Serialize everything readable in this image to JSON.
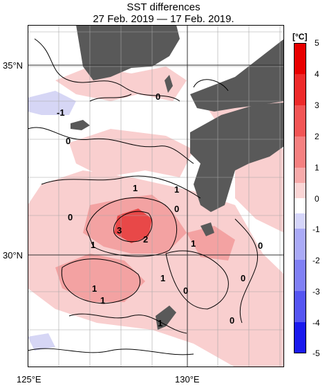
{
  "title": {
    "line1": "SST differences",
    "line2": "27 Feb. 2019 — 17 Feb. 2019."
  },
  "axes": {
    "lat_labels": [
      "35°N",
      "30°N"
    ],
    "lon_labels": [
      "125°E",
      "130°E"
    ]
  },
  "colorbar": {
    "unit": "[°C]",
    "ticks": [
      "5",
      "4",
      "3",
      "2",
      "1",
      "0",
      "-1",
      "-2",
      "-3",
      "-4",
      "-5"
    ],
    "colors": {
      "warm": "#ee2a2a",
      "cool": "#3a3aee",
      "neutral": "#ffffff",
      "land": "#595959"
    }
  },
  "contour_labels": [
    {
      "text": "-1"
    },
    {
      "text": "0"
    },
    {
      "text": "0"
    },
    {
      "text": "1"
    },
    {
      "text": "1"
    },
    {
      "text": "0"
    },
    {
      "text": "0"
    },
    {
      "text": "3"
    },
    {
      "text": "2"
    },
    {
      "text": "1"
    },
    {
      "text": "1"
    },
    {
      "text": "0"
    },
    {
      "text": "1"
    },
    {
      "text": "1"
    },
    {
      "text": "0"
    },
    {
      "text": "1"
    },
    {
      "text": "0"
    },
    {
      "text": "1"
    },
    {
      "text": "0"
    }
  ]
}
